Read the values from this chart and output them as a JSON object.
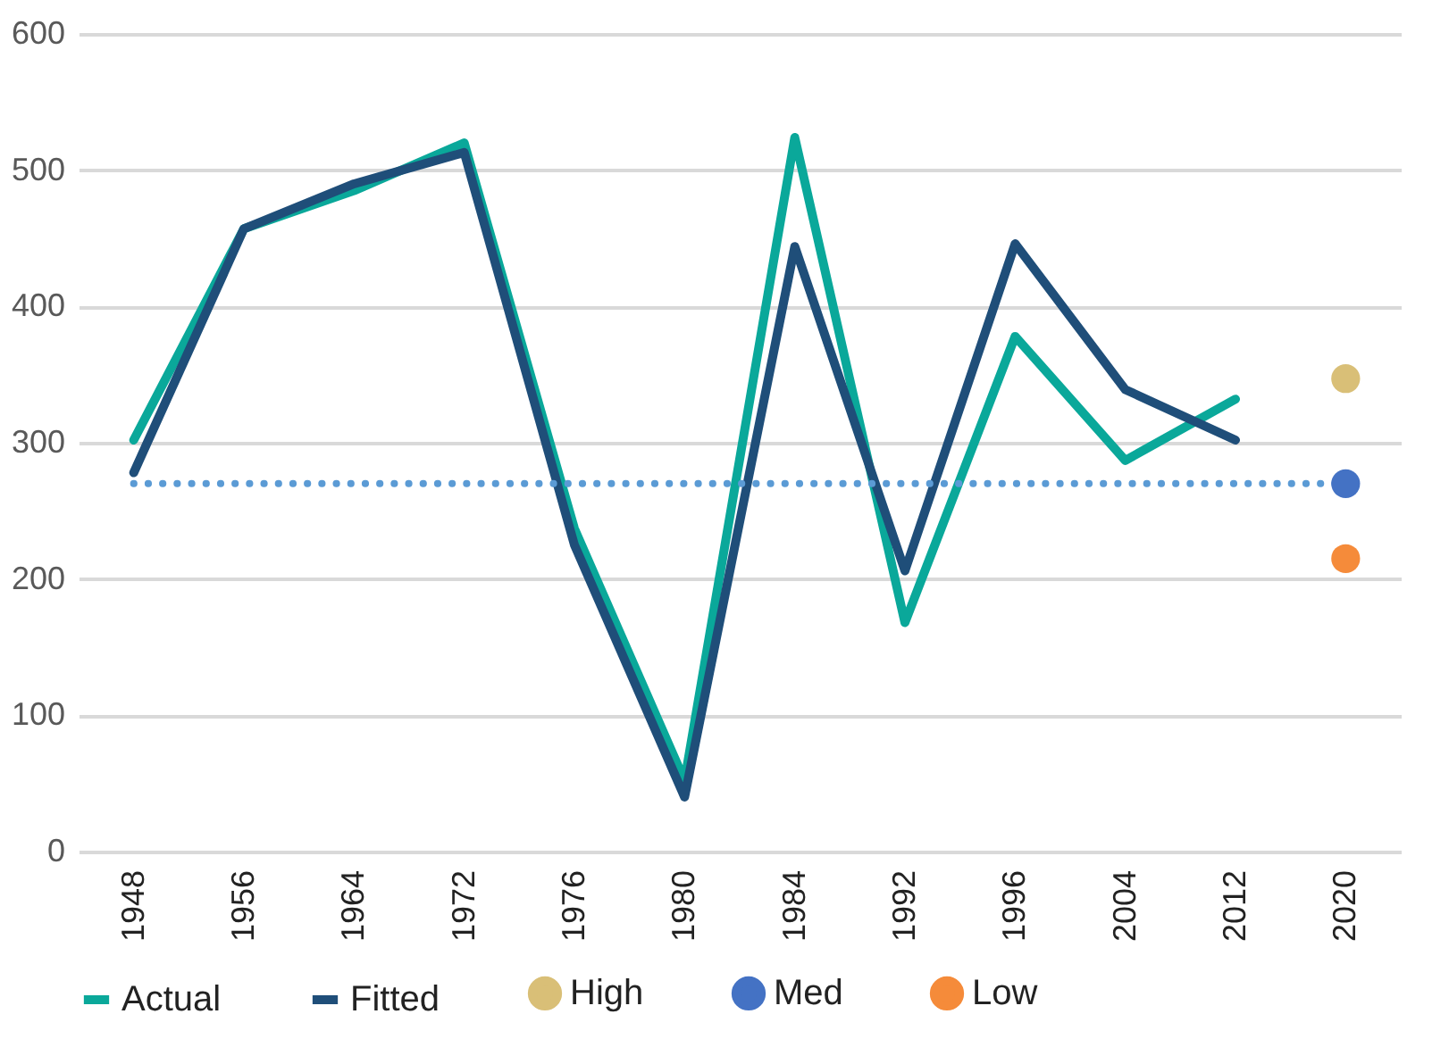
{
  "chart_data": {
    "type": "line",
    "categories": [
      "1948",
      "1956",
      "1964",
      "1972",
      "1976",
      "1980",
      "1984",
      "1992",
      "1996",
      "2004",
      "2012",
      "2020"
    ],
    "series": [
      {
        "name": "Actual",
        "color": "#0aa89a",
        "values": [
          302,
          457,
          485,
          520,
          237,
          52,
          524,
          168,
          378,
          287,
          332,
          null
        ]
      },
      {
        "name": "Fitted",
        "color": "#1f4e79",
        "values": [
          278,
          457,
          490,
          513,
          225,
          40,
          444,
          206,
          446,
          339,
          302,
          null
        ]
      },
      {
        "name": "High",
        "type": "scatter",
        "color": "#d9bf77",
        "values": [
          null,
          null,
          null,
          null,
          null,
          null,
          null,
          null,
          null,
          null,
          null,
          347
        ]
      },
      {
        "name": "Med",
        "type": "scatter",
        "color": "#4472c4",
        "values": [
          null,
          null,
          null,
          null,
          null,
          null,
          null,
          null,
          null,
          null,
          null,
          270
        ]
      },
      {
        "name": "Low",
        "type": "scatter",
        "color": "#f58b3a",
        "values": [
          null,
          null,
          null,
          null,
          null,
          null,
          null,
          null,
          null,
          null,
          null,
          215
        ]
      }
    ],
    "ref_lines": [
      {
        "axis": "y",
        "value": 270,
        "color": "#5b9bd5",
        "line_style": "dotted"
      }
    ],
    "ylim": [
      0,
      600
    ],
    "yticks": [
      0,
      100,
      200,
      300,
      400,
      500,
      600
    ],
    "grid": "y",
    "legend": "bottom"
  }
}
